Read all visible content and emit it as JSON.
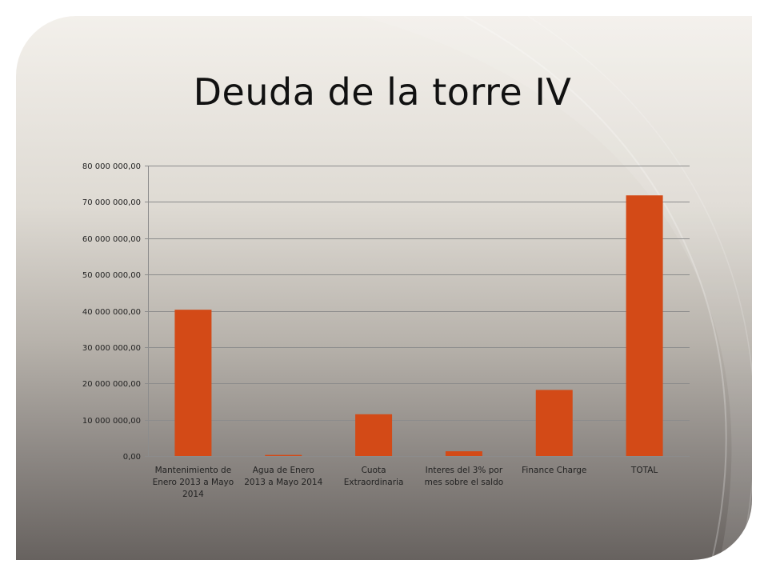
{
  "slide": {
    "title": "Deuda de la torre IV"
  },
  "colors": {
    "bar": "#d34a17",
    "gridline": "#8c8c8c",
    "text": "#222222"
  },
  "chart_data": {
    "type": "bar",
    "title": "",
    "xlabel": "",
    "ylabel": "",
    "categories": [
      "Mantenimiento de Enero 2013 a Mayo 2014",
      "Agua de Enero 2013 a Mayo 2014",
      "Cuota Extraordinaria",
      "Interes del 3% por mes sobre el saldo",
      "Finance Charge",
      "TOTAL"
    ],
    "category_lines": [
      [
        "Mantenimiento de",
        "Enero 2013 a Mayo",
        "2014"
      ],
      [
        "Agua de Enero",
        "2013 a Mayo 2014"
      ],
      [
        "Cuota",
        "Extraordinaria"
      ],
      [
        "Interes del 3% por",
        "mes sobre el saldo"
      ],
      [
        "Finance Charge"
      ],
      [
        "TOTAL"
      ]
    ],
    "values": [
      40300000,
      300000,
      11500000,
      1300000,
      18200000,
      71800000
    ],
    "ylim": [
      0,
      80000000
    ],
    "yticks": [
      0,
      10000000,
      20000000,
      30000000,
      40000000,
      50000000,
      60000000,
      70000000,
      80000000
    ],
    "ytick_labels": [
      "0,00",
      "10 000 000,00",
      "20 000 000,00",
      "30 000 000,00",
      "40 000 000,00",
      "50 000 000,00",
      "60 000 000,00",
      "70 000 000,00",
      "80 000 000,00"
    ],
    "grid": true,
    "legend": "none"
  }
}
